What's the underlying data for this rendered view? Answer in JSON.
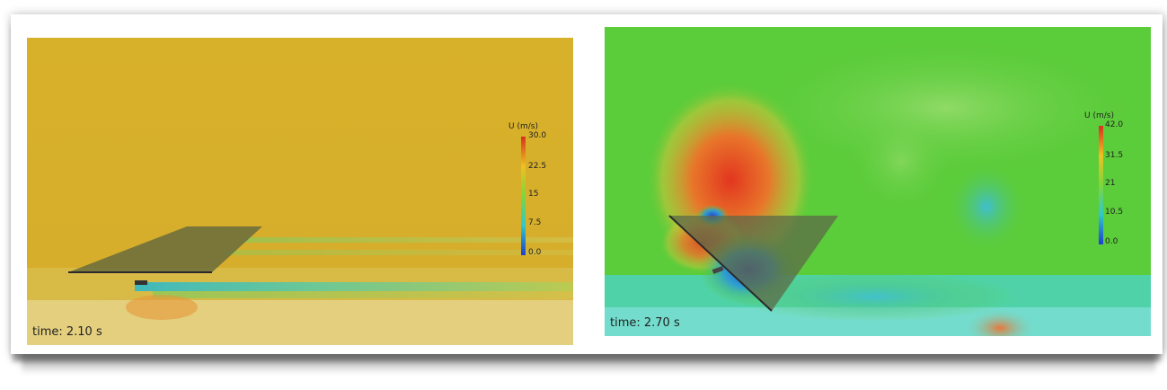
{
  "panels": [
    {
      "time_label": "time: 2.10 s",
      "colorbar": {
        "title": "U (m/s)",
        "ticks": [
          "30.0",
          "22.5",
          "15",
          "7.5",
          "0.0"
        ]
      },
      "colors": {
        "background": "#d9b22a",
        "ground": "#e3cf7e"
      }
    },
    {
      "time_label": "time: 2.70 s",
      "colorbar": {
        "title": "U (m/s)",
        "ticks": [
          "42.0",
          "31.5",
          "21",
          "10.5",
          "0.0"
        ]
      },
      "colors": {
        "background": "#5bcc3a",
        "ground": "#6fd9c8"
      }
    }
  ],
  "colorbar_gradient": [
    "#d7301f",
    "#f0c020",
    "#7ed63a",
    "#2fc9c9",
    "#1f3fd0"
  ]
}
